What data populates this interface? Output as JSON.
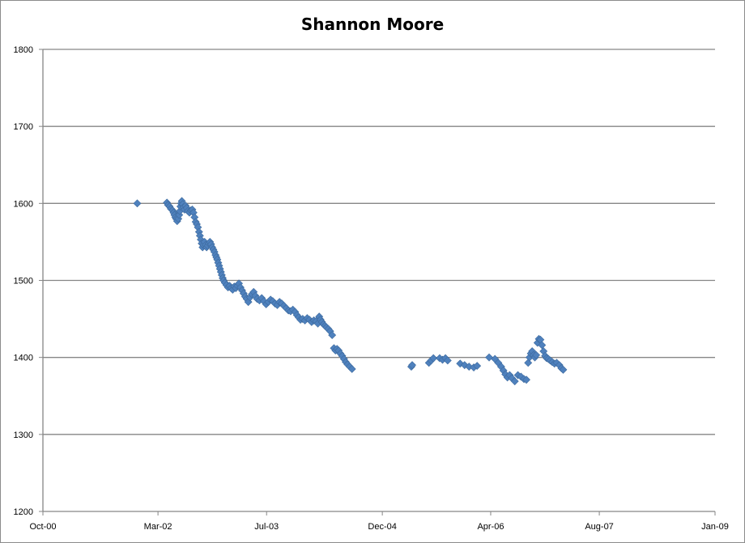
{
  "chart_data": {
    "type": "scatter",
    "title": "Shannon Moore",
    "xlabel": "",
    "ylabel": "",
    "ylim": [
      1200,
      1800
    ],
    "yticks": [
      1200,
      1300,
      1400,
      1500,
      1600,
      1700,
      1800
    ],
    "xlim": [
      "2000-10-01",
      "2009-01-01"
    ],
    "xticks": [
      {
        "date": "2000-10-01",
        "label": "Oct-00"
      },
      {
        "date": "2002-03-01",
        "label": "Mar-02"
      },
      {
        "date": "2003-07-01",
        "label": "Jul-03"
      },
      {
        "date": "2004-12-01",
        "label": "Dec-04"
      },
      {
        "date": "2006-04-01",
        "label": "Apr-06"
      },
      {
        "date": "2007-08-01",
        "label": "Aug-07"
      },
      {
        "date": "2009-01-01",
        "label": "Jan-09"
      }
    ],
    "grid": "horizontal",
    "legend": "none",
    "marker": "diamond",
    "color": "#4f81bd",
    "series": [
      {
        "points": [
          {
            "x": "2001-11-28",
            "y": 1600
          },
          {
            "x": "2002-04-10",
            "y": 1601
          },
          {
            "x": "2002-04-15",
            "y": 1598
          },
          {
            "x": "2002-04-22",
            "y": 1596
          },
          {
            "x": "2002-04-28",
            "y": 1593
          },
          {
            "x": "2002-05-05",
            "y": 1591
          },
          {
            "x": "2002-05-10",
            "y": 1588
          },
          {
            "x": "2002-05-14",
            "y": 1585
          },
          {
            "x": "2002-05-18",
            "y": 1582
          },
          {
            "x": "2002-05-22",
            "y": 1580
          },
          {
            "x": "2002-05-26",
            "y": 1577
          },
          {
            "x": "2002-05-31",
            "y": 1580
          },
          {
            "x": "2002-06-04",
            "y": 1585
          },
          {
            "x": "2002-06-07",
            "y": 1590
          },
          {
            "x": "2002-06-10",
            "y": 1596
          },
          {
            "x": "2002-06-13",
            "y": 1600
          },
          {
            "x": "2002-06-16",
            "y": 1603
          },
          {
            "x": "2002-06-20",
            "y": 1599
          },
          {
            "x": "2002-06-24",
            "y": 1595
          },
          {
            "x": "2002-06-28",
            "y": 1592
          },
          {
            "x": "2002-07-03",
            "y": 1597
          },
          {
            "x": "2002-07-08",
            "y": 1594
          },
          {
            "x": "2002-07-13",
            "y": 1590
          },
          {
            "x": "2002-07-20",
            "y": 1588
          },
          {
            "x": "2002-07-27",
            "y": 1591
          },
          {
            "x": "2002-08-02",
            "y": 1592
          },
          {
            "x": "2002-08-07",
            "y": 1588
          },
          {
            "x": "2002-08-12",
            "y": 1582
          },
          {
            "x": "2002-08-17",
            "y": 1576
          },
          {
            "x": "2002-08-22",
            "y": 1573
          },
          {
            "x": "2002-08-27",
            "y": 1569
          },
          {
            "x": "2002-09-01",
            "y": 1563
          },
          {
            "x": "2002-09-05",
            "y": 1558
          },
          {
            "x": "2002-09-09",
            "y": 1553
          },
          {
            "x": "2002-09-13",
            "y": 1548
          },
          {
            "x": "2002-09-17",
            "y": 1543
          },
          {
            "x": "2002-09-21",
            "y": 1546
          },
          {
            "x": "2002-09-26",
            "y": 1550
          },
          {
            "x": "2002-10-01",
            "y": 1546
          },
          {
            "x": "2002-10-05",
            "y": 1543
          },
          {
            "x": "2002-10-10",
            "y": 1545
          },
          {
            "x": "2002-10-15",
            "y": 1548
          },
          {
            "x": "2002-10-20",
            "y": 1550
          },
          {
            "x": "2002-10-25",
            "y": 1547
          },
          {
            "x": "2002-10-30",
            "y": 1543
          },
          {
            "x": "2002-11-04",
            "y": 1540
          },
          {
            "x": "2002-11-09",
            "y": 1537
          },
          {
            "x": "2002-11-14",
            "y": 1533
          },
          {
            "x": "2002-11-18",
            "y": 1530
          },
          {
            "x": "2002-11-22",
            "y": 1527
          },
          {
            "x": "2002-11-26",
            "y": 1523
          },
          {
            "x": "2002-11-30",
            "y": 1519
          },
          {
            "x": "2002-12-04",
            "y": 1515
          },
          {
            "x": "2002-12-08",
            "y": 1511
          },
          {
            "x": "2002-12-12",
            "y": 1507
          },
          {
            "x": "2002-12-16",
            "y": 1503
          },
          {
            "x": "2002-12-20",
            "y": 1500
          },
          {
            "x": "2002-12-26",
            "y": 1497
          },
          {
            "x": "2003-01-02",
            "y": 1494
          },
          {
            "x": "2003-01-09",
            "y": 1491
          },
          {
            "x": "2003-01-16",
            "y": 1493
          },
          {
            "x": "2003-01-23",
            "y": 1490
          },
          {
            "x": "2003-01-30",
            "y": 1488
          },
          {
            "x": "2003-02-06",
            "y": 1492
          },
          {
            "x": "2003-02-13",
            "y": 1490
          },
          {
            "x": "2003-02-20",
            "y": 1493
          },
          {
            "x": "2003-02-27",
            "y": 1496
          },
          {
            "x": "2003-03-06",
            "y": 1491
          },
          {
            "x": "2003-03-13",
            "y": 1487
          },
          {
            "x": "2003-03-20",
            "y": 1483
          },
          {
            "x": "2003-03-27",
            "y": 1479
          },
          {
            "x": "2003-04-03",
            "y": 1476
          },
          {
            "x": "2003-04-10",
            "y": 1472
          },
          {
            "x": "2003-04-18",
            "y": 1478
          },
          {
            "x": "2003-04-26",
            "y": 1482
          },
          {
            "x": "2003-05-04",
            "y": 1485
          },
          {
            "x": "2003-05-12",
            "y": 1480
          },
          {
            "x": "2003-05-20",
            "y": 1476
          },
          {
            "x": "2003-05-30",
            "y": 1474
          },
          {
            "x": "2003-06-09",
            "y": 1477
          },
          {
            "x": "2003-06-19",
            "y": 1473
          },
          {
            "x": "2003-06-29",
            "y": 1469
          },
          {
            "x": "2003-07-09",
            "y": 1472
          },
          {
            "x": "2003-07-19",
            "y": 1475
          },
          {
            "x": "2003-07-29",
            "y": 1473
          },
          {
            "x": "2003-08-08",
            "y": 1470
          },
          {
            "x": "2003-08-18",
            "y": 1468
          },
          {
            "x": "2003-08-28",
            "y": 1472
          },
          {
            "x": "2003-09-07",
            "y": 1470
          },
          {
            "x": "2003-09-17",
            "y": 1467
          },
          {
            "x": "2003-09-27",
            "y": 1464
          },
          {
            "x": "2003-10-07",
            "y": 1461
          },
          {
            "x": "2003-10-17",
            "y": 1460
          },
          {
            "x": "2003-10-27",
            "y": 1462
          },
          {
            "x": "2003-11-06",
            "y": 1459
          },
          {
            "x": "2003-11-14",
            "y": 1455
          },
          {
            "x": "2003-11-22",
            "y": 1452
          },
          {
            "x": "2003-11-30",
            "y": 1449
          },
          {
            "x": "2003-12-10",
            "y": 1450
          },
          {
            "x": "2003-12-20",
            "y": 1448
          },
          {
            "x": "2003-12-30",
            "y": 1451
          },
          {
            "x": "2004-01-09",
            "y": 1449
          },
          {
            "x": "2004-01-19",
            "y": 1446
          },
          {
            "x": "2004-01-29",
            "y": 1448
          },
          {
            "x": "2004-02-08",
            "y": 1447
          },
          {
            "x": "2004-02-16",
            "y": 1444
          },
          {
            "x": "2004-02-22",
            "y": 1453
          },
          {
            "x": "2004-02-28",
            "y": 1449
          },
          {
            "x": "2004-03-05",
            "y": 1446
          },
          {
            "x": "2004-03-12",
            "y": 1443
          },
          {
            "x": "2004-03-19",
            "y": 1441
          },
          {
            "x": "2004-03-26",
            "y": 1439
          },
          {
            "x": "2004-04-03",
            "y": 1437
          },
          {
            "x": "2004-04-11",
            "y": 1434
          },
          {
            "x": "2004-04-20",
            "y": 1429
          },
          {
            "x": "2004-04-28",
            "y": 1412
          },
          {
            "x": "2004-05-05",
            "y": 1409
          },
          {
            "x": "2004-05-12",
            "y": 1411
          },
          {
            "x": "2004-05-19",
            "y": 1409
          },
          {
            "x": "2004-05-27",
            "y": 1405
          },
          {
            "x": "2004-06-04",
            "y": 1402
          },
          {
            "x": "2004-06-12",
            "y": 1398
          },
          {
            "x": "2004-06-20",
            "y": 1394
          },
          {
            "x": "2004-06-28",
            "y": 1391
          },
          {
            "x": "2004-07-08",
            "y": 1388
          },
          {
            "x": "2004-07-18",
            "y": 1385
          },
          {
            "x": "2005-04-10",
            "y": 1388
          },
          {
            "x": "2005-04-14",
            "y": 1390
          },
          {
            "x": "2005-06-28",
            "y": 1393
          },
          {
            "x": "2005-07-08",
            "y": 1396
          },
          {
            "x": "2005-07-18",
            "y": 1399
          },
          {
            "x": "2005-08-15",
            "y": 1399
          },
          {
            "x": "2005-08-28",
            "y": 1397
          },
          {
            "x": "2005-09-10",
            "y": 1399
          },
          {
            "x": "2005-09-20",
            "y": 1396
          },
          {
            "x": "2005-11-15",
            "y": 1392
          },
          {
            "x": "2005-12-05",
            "y": 1390
          },
          {
            "x": "2005-12-25",
            "y": 1388
          },
          {
            "x": "2006-01-15",
            "y": 1387
          },
          {
            "x": "2006-01-30",
            "y": 1389
          },
          {
            "x": "2006-03-25",
            "y": 1400
          },
          {
            "x": "2006-04-20",
            "y": 1398
          },
          {
            "x": "2006-05-05",
            "y": 1393
          },
          {
            "x": "2006-05-18",
            "y": 1388
          },
          {
            "x": "2006-05-28",
            "y": 1383
          },
          {
            "x": "2006-06-06",
            "y": 1378
          },
          {
            "x": "2006-06-15",
            "y": 1374
          },
          {
            "x": "2006-06-25",
            "y": 1377
          },
          {
            "x": "2006-07-05",
            "y": 1373
          },
          {
            "x": "2006-07-18",
            "y": 1369
          },
          {
            "x": "2006-08-01",
            "y": 1377
          },
          {
            "x": "2006-08-15",
            "y": 1375
          },
          {
            "x": "2006-08-28",
            "y": 1372
          },
          {
            "x": "2006-09-08",
            "y": 1371
          },
          {
            "x": "2006-09-16",
            "y": 1393
          },
          {
            "x": "2006-09-22",
            "y": 1400
          },
          {
            "x": "2006-09-28",
            "y": 1405
          },
          {
            "x": "2006-10-04",
            "y": 1408
          },
          {
            "x": "2006-10-10",
            "y": 1403
          },
          {
            "x": "2006-10-16",
            "y": 1400
          },
          {
            "x": "2006-10-22",
            "y": 1403
          },
          {
            "x": "2006-10-28",
            "y": 1419
          },
          {
            "x": "2006-11-03",
            "y": 1424
          },
          {
            "x": "2006-11-10",
            "y": 1423
          },
          {
            "x": "2006-11-17",
            "y": 1416
          },
          {
            "x": "2006-11-24",
            "y": 1408
          },
          {
            "x": "2006-12-01",
            "y": 1402
          },
          {
            "x": "2006-12-08",
            "y": 1399
          },
          {
            "x": "2006-12-16",
            "y": 1398
          },
          {
            "x": "2006-12-24",
            "y": 1396
          },
          {
            "x": "2007-01-02",
            "y": 1394
          },
          {
            "x": "2007-01-12",
            "y": 1392
          },
          {
            "x": "2007-01-22",
            "y": 1393
          },
          {
            "x": "2007-02-03",
            "y": 1390
          },
          {
            "x": "2007-02-12",
            "y": 1386
          },
          {
            "x": "2007-02-20",
            "y": 1384
          }
        ]
      }
    ]
  }
}
